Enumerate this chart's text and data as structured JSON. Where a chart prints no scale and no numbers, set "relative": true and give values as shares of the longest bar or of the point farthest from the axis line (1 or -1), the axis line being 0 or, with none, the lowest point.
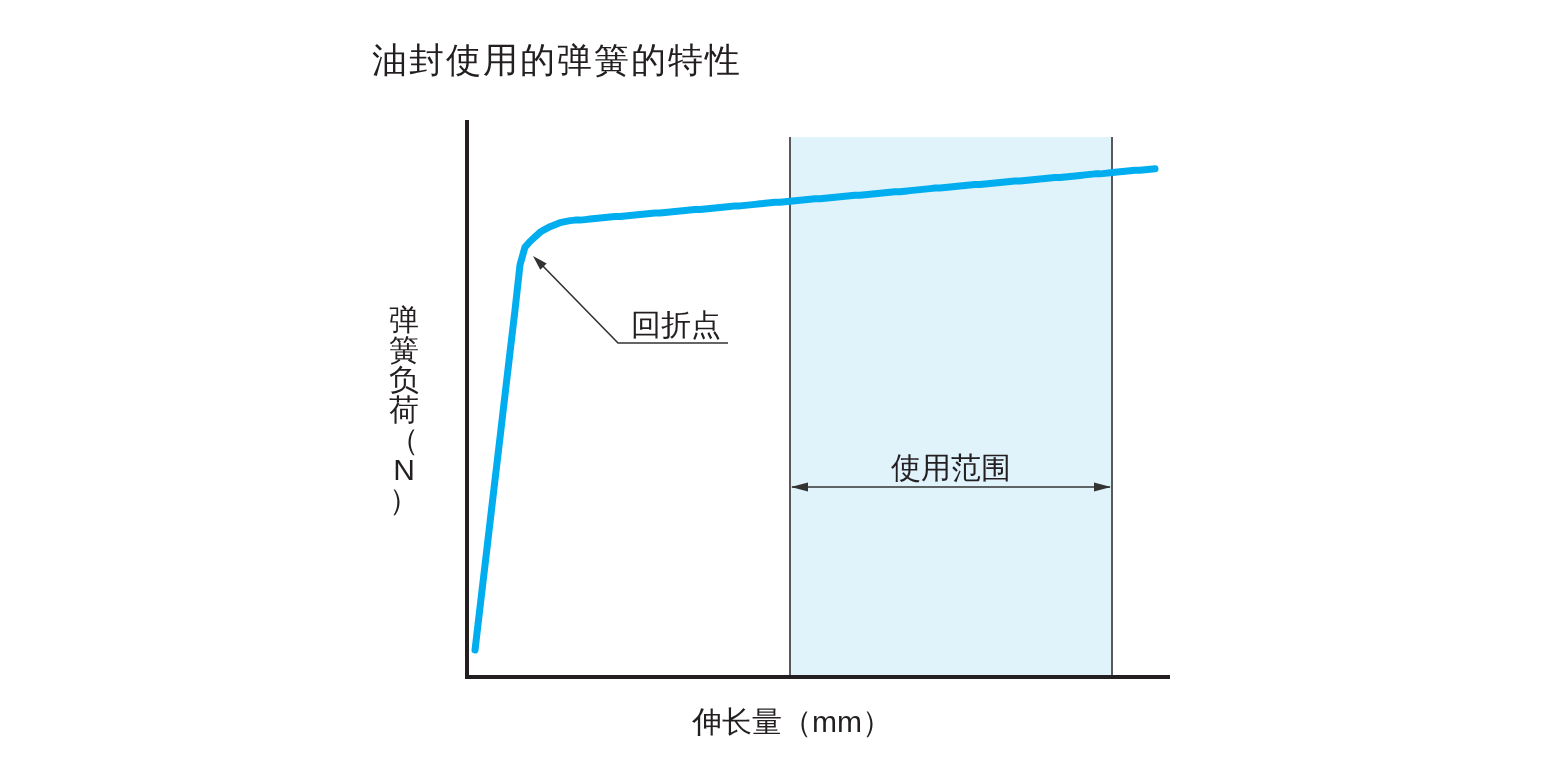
{
  "chart_data": {
    "type": "line",
    "title": "油封使用的弹簧的特性",
    "xlabel": "伸长量（mm）",
    "ylabel": "弹簧负荷（N）",
    "relative": true,
    "categories": [
      null,
      null,
      null,
      null,
      null,
      null,
      null,
      null,
      null,
      null,
      null,
      null,
      null,
      null,
      null,
      null,
      null,
      null,
      null,
      null,
      null,
      null,
      null,
      null,
      null,
      null,
      null,
      null,
      null,
      null,
      null,
      null,
      null,
      null,
      null,
      null,
      null,
      null,
      null,
      null,
      null,
      null,
      null,
      null,
      null,
      null,
      null,
      null,
      null,
      null,
      null,
      null,
      null,
      null,
      null,
      null,
      null,
      null,
      null,
      null,
      null,
      null,
      null,
      null,
      null,
      null,
      null,
      null,
      null,
      null,
      null,
      null,
      null,
      null,
      null,
      null,
      null,
      null,
      null,
      null,
      null,
      null,
      null,
      null,
      null,
      null,
      null,
      null,
      null,
      null,
      null,
      null,
      null,
      null,
      null,
      null,
      null,
      null,
      null,
      null,
      null,
      null,
      null,
      null,
      null,
      null,
      null,
      null,
      null,
      null,
      null,
      null,
      null,
      null,
      null,
      null,
      null,
      null,
      null,
      null,
      null,
      null,
      null,
      null,
      null,
      null,
      null,
      null,
      null,
      null,
      null,
      null,
      null,
      null,
      null,
      null,
      null
    ],
    "series": [
      {
        "color": "#00aeef",
        "values": [
          0.053,
          0.137,
          0.22,
          0.304,
          0.388,
          0.471,
          0.555,
          0.639,
          0.722,
          0.811,
          0.846,
          0.857,
          0.866,
          0.875,
          0.881,
          0.886,
          0.89,
          0.894,
          0.896,
          0.898,
          0.899,
          0.899,
          0.9,
          0.901,
          0.902,
          0.903,
          0.904,
          0.905,
          0.906,
          0.906,
          0.907,
          0.908,
          0.909,
          0.91,
          0.911,
          0.912,
          0.913,
          0.913,
          0.914,
          0.915,
          0.916,
          0.917,
          0.918,
          0.919,
          0.92,
          0.92,
          0.921,
          0.922,
          0.923,
          0.924,
          0.925,
          0.926,
          0.927,
          0.927,
          0.928,
          0.929,
          0.93,
          0.931,
          0.932,
          0.933,
          0.934,
          0.934,
          0.935,
          0.936,
          0.937,
          0.938,
          0.939,
          0.94,
          0.941,
          0.941,
          0.942,
          0.943,
          0.944,
          0.945,
          0.946,
          0.947,
          0.948,
          0.948,
          0.949,
          0.95,
          0.951,
          0.952,
          0.953,
          0.954,
          0.955,
          0.955,
          0.956,
          0.957,
          0.958,
          0.959,
          0.96,
          0.961,
          0.962,
          0.962,
          0.963,
          0.964,
          0.965,
          0.966,
          0.967,
          0.968,
          0.969,
          0.969,
          0.97,
          0.971,
          0.972,
          0.973,
          0.974,
          0.975,
          0.976,
          0.976,
          0.977,
          0.978,
          0.979,
          0.98,
          0.981,
          0.982,
          0.983,
          0.983,
          0.984,
          0.985,
          0.986,
          0.987,
          0.988,
          0.989,
          0.99,
          0.99,
          0.991,
          0.992,
          0.993,
          0.994,
          0.995,
          0.996,
          0.997,
          0.997,
          0.998,
          0.999,
          1.0
        ]
      }
    ],
    "annotations": [
      "回折点",
      "使用范围"
    ]
  }
}
